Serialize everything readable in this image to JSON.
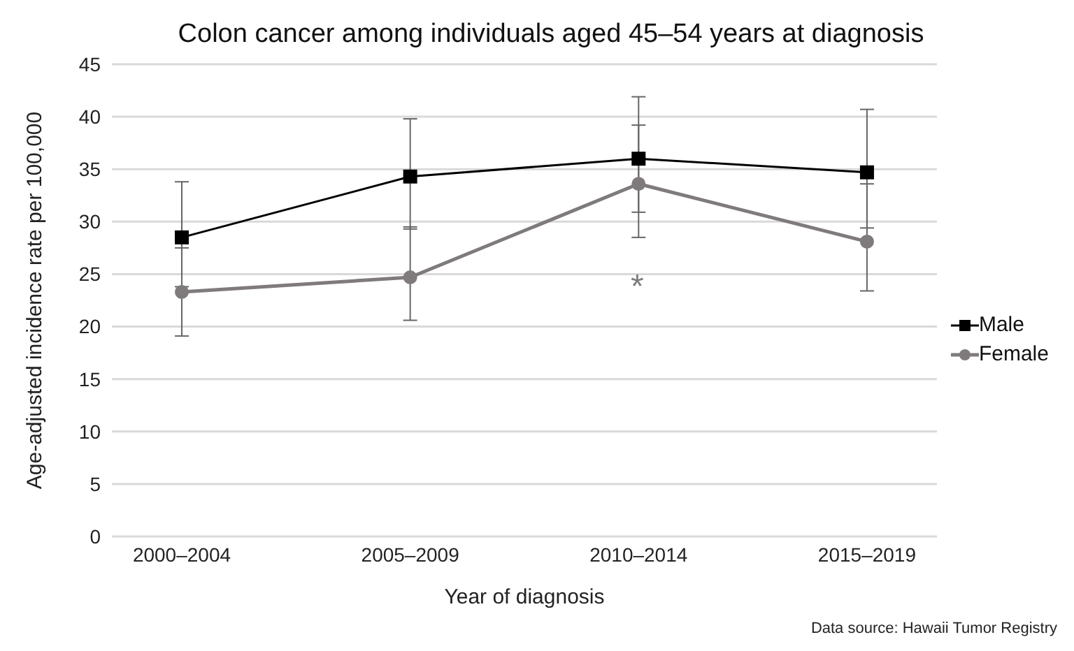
{
  "chart_data": {
    "type": "line",
    "title": "Colon cancer among individuals aged 45–54 years at diagnosis",
    "xlabel": "Year of diagnosis",
    "ylabel": "Age-adjusted incidence rate per 100,000",
    "categories": [
      "2000–2004",
      "2005–2009",
      "2010–2014",
      "2015–2019"
    ],
    "series": [
      {
        "name": "Male",
        "color": "#000000",
        "marker": "square",
        "values": [
          28.5,
          34.3,
          36.0,
          34.7
        ],
        "errors": [
          [
            23.8,
            33.8
          ],
          [
            29.3,
            39.8
          ],
          [
            30.9,
            41.9
          ],
          [
            29.4,
            40.7
          ]
        ]
      },
      {
        "name": "Female",
        "color": "#7f7a7b",
        "marker": "circle",
        "values": [
          23.3,
          24.7,
          33.6,
          28.1
        ],
        "errors": [
          [
            19.1,
            27.5
          ],
          [
            20.6,
            29.5
          ],
          [
            28.5,
            39.2
          ],
          [
            23.4,
            33.6
          ]
        ]
      }
    ],
    "ylim": [
      0,
      45
    ],
    "yticks": [
      0,
      5,
      10,
      15,
      20,
      25,
      30,
      35,
      40,
      45
    ],
    "grid": "y",
    "legend": "right",
    "annotations": [
      "*",
      "Data source: Hawaii Tumor Registry"
    ]
  }
}
